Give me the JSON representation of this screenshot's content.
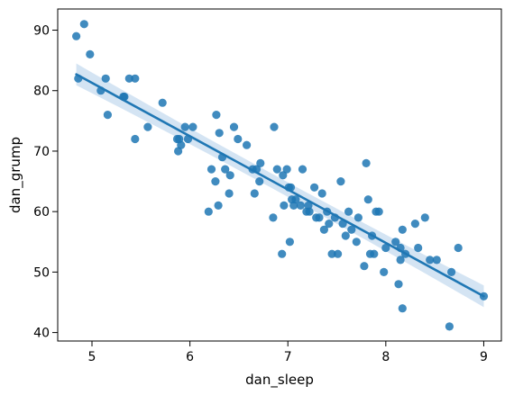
{
  "chart_data": {
    "type": "scatter",
    "xlabel": "dan_sleep",
    "ylabel": "dan_grump",
    "xlim": [
      4.65,
      9.18
    ],
    "ylim": [
      38.6,
      93.5
    ],
    "xticks": [
      5,
      6,
      7,
      8,
      9
    ],
    "yticks": [
      40,
      50,
      60,
      70,
      80,
      90
    ],
    "grid": false,
    "colors": {
      "points": "#1f77b4",
      "line": "#1f77b4",
      "band": "#c6dbef"
    },
    "regression": {
      "x": [
        4.84,
        9.0
      ],
      "y": [
        82.7,
        46.0
      ],
      "ci_half_width": [
        1.8,
        1.2,
        1.8
      ]
    },
    "points": [
      {
        "x": 4.84,
        "y": 89
      },
      {
        "x": 4.92,
        "y": 91
      },
      {
        "x": 4.86,
        "y": 82
      },
      {
        "x": 4.98,
        "y": 86
      },
      {
        "x": 5.09,
        "y": 80
      },
      {
        "x": 5.14,
        "y": 82
      },
      {
        "x": 5.16,
        "y": 76
      },
      {
        "x": 5.32,
        "y": 79
      },
      {
        "x": 5.33,
        "y": 79
      },
      {
        "x": 5.38,
        "y": 82
      },
      {
        "x": 5.44,
        "y": 82
      },
      {
        "x": 5.44,
        "y": 72
      },
      {
        "x": 5.57,
        "y": 74
      },
      {
        "x": 5.72,
        "y": 78
      },
      {
        "x": 5.87,
        "y": 72
      },
      {
        "x": 5.88,
        "y": 70
      },
      {
        "x": 5.89,
        "y": 72
      },
      {
        "x": 5.91,
        "y": 71
      },
      {
        "x": 5.95,
        "y": 74
      },
      {
        "x": 5.98,
        "y": 72
      },
      {
        "x": 6.03,
        "y": 74
      },
      {
        "x": 6.19,
        "y": 60
      },
      {
        "x": 6.22,
        "y": 67
      },
      {
        "x": 6.26,
        "y": 65
      },
      {
        "x": 6.27,
        "y": 76
      },
      {
        "x": 6.29,
        "y": 61
      },
      {
        "x": 6.3,
        "y": 73
      },
      {
        "x": 6.33,
        "y": 69
      },
      {
        "x": 6.36,
        "y": 67
      },
      {
        "x": 6.4,
        "y": 63
      },
      {
        "x": 6.41,
        "y": 66
      },
      {
        "x": 6.45,
        "y": 74
      },
      {
        "x": 6.49,
        "y": 72
      },
      {
        "x": 6.58,
        "y": 71
      },
      {
        "x": 6.64,
        "y": 67
      },
      {
        "x": 6.66,
        "y": 63
      },
      {
        "x": 6.68,
        "y": 67
      },
      {
        "x": 6.71,
        "y": 65
      },
      {
        "x": 6.72,
        "y": 68
      },
      {
        "x": 6.85,
        "y": 59
      },
      {
        "x": 6.86,
        "y": 74
      },
      {
        "x": 6.89,
        "y": 67
      },
      {
        "x": 6.94,
        "y": 53
      },
      {
        "x": 6.95,
        "y": 66
      },
      {
        "x": 6.96,
        "y": 61
      },
      {
        "x": 6.99,
        "y": 67
      },
      {
        "x": 7.01,
        "y": 64
      },
      {
        "x": 7.02,
        "y": 55
      },
      {
        "x": 7.03,
        "y": 64
      },
      {
        "x": 7.04,
        "y": 62
      },
      {
        "x": 7.06,
        "y": 61
      },
      {
        "x": 7.08,
        "y": 62
      },
      {
        "x": 7.13,
        "y": 61
      },
      {
        "x": 7.15,
        "y": 67
      },
      {
        "x": 7.19,
        "y": 60
      },
      {
        "x": 7.21,
        "y": 61
      },
      {
        "x": 7.22,
        "y": 60
      },
      {
        "x": 7.27,
        "y": 64
      },
      {
        "x": 7.29,
        "y": 59
      },
      {
        "x": 7.32,
        "y": 59
      },
      {
        "x": 7.35,
        "y": 63
      },
      {
        "x": 7.37,
        "y": 57
      },
      {
        "x": 7.4,
        "y": 60
      },
      {
        "x": 7.42,
        "y": 58
      },
      {
        "x": 7.45,
        "y": 53
      },
      {
        "x": 7.48,
        "y": 59
      },
      {
        "x": 7.51,
        "y": 53
      },
      {
        "x": 7.54,
        "y": 65
      },
      {
        "x": 7.56,
        "y": 58
      },
      {
        "x": 7.59,
        "y": 56
      },
      {
        "x": 7.62,
        "y": 60
      },
      {
        "x": 7.65,
        "y": 57
      },
      {
        "x": 7.7,
        "y": 55
      },
      {
        "x": 7.72,
        "y": 59
      },
      {
        "x": 7.78,
        "y": 51
      },
      {
        "x": 7.8,
        "y": 68
      },
      {
        "x": 7.82,
        "y": 62
      },
      {
        "x": 7.84,
        "y": 53
      },
      {
        "x": 7.86,
        "y": 56
      },
      {
        "x": 7.88,
        "y": 53
      },
      {
        "x": 7.9,
        "y": 60
      },
      {
        "x": 7.93,
        "y": 60
      },
      {
        "x": 7.98,
        "y": 50
      },
      {
        "x": 8.0,
        "y": 54
      },
      {
        "x": 8.1,
        "y": 55
      },
      {
        "x": 8.13,
        "y": 48
      },
      {
        "x": 8.15,
        "y": 52
      },
      {
        "x": 8.15,
        "y": 54
      },
      {
        "x": 8.17,
        "y": 57
      },
      {
        "x": 8.17,
        "y": 44
      },
      {
        "x": 8.2,
        "y": 53
      },
      {
        "x": 8.3,
        "y": 58
      },
      {
        "x": 8.33,
        "y": 54
      },
      {
        "x": 8.4,
        "y": 59
      },
      {
        "x": 8.45,
        "y": 52
      },
      {
        "x": 8.52,
        "y": 52
      },
      {
        "x": 8.65,
        "y": 41
      },
      {
        "x": 8.67,
        "y": 50
      },
      {
        "x": 8.74,
        "y": 54
      },
      {
        "x": 9.0,
        "y": 46
      }
    ]
  }
}
